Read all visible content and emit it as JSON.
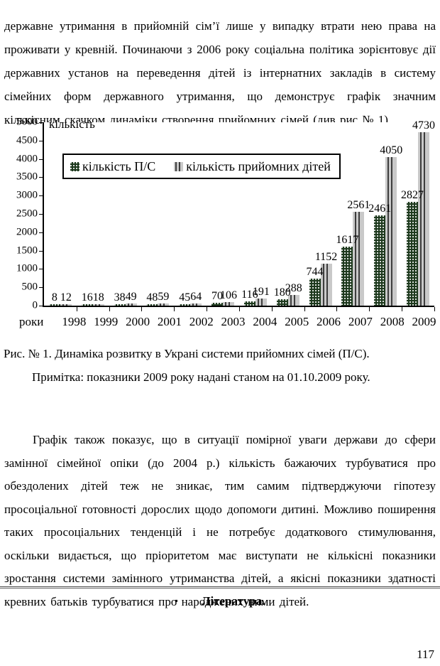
{
  "document": {
    "paragraph1": "державне утримання в прийомній сім’ї лише у випадку втрати нею права на проживати у кревній. Починаючи з 2006 року соціальна політика зорієнтовує дії державних установ на переведення дітей із інтернатних закладів в систему сімейних форм державного утримання, що демонструє графік значним кількісним скачком динаміки створення прийомних сімей (див рис № 1).",
    "figure_caption": "Рис. № 1. Динаміка розвитку в Украні системи прийомних сімей (П/С).",
    "figure_note": "Примітка: показники 2009 року надані станом на 01.10.2009 року.",
    "paragraph2": "Графік також показує, що в ситуації помірної уваги держави до сфери замінної сімейної опіки (до 2004 р.) кількість бажаючих турбуватися про обездолених дітей теж не зникає, тим самим підтверджуючи гіпотезу просоціальної готовності дорослих щодо допомоги дитині. Можливо поширення таких просоціальних тенденцій і не потребує додаткового стимулювання, оскільки видається, що пріоритетом має виступати не кількісні показники зростання системи замінного утриманства дітей, а якісні показники здатності кревних батьків турбуватися про народжених ними дітей.",
    "literature_bullet": "▪",
    "literature_heading": "Література.",
    "page_number": "117"
  },
  "chart_data": {
    "type": "bar",
    "title": "",
    "ylabel": "кількість",
    "xlabel": "роки",
    "categories": [
      "1998",
      "1999",
      "2000",
      "2001",
      "2002",
      "2003",
      "2004",
      "2005",
      "2006",
      "2007",
      "2008",
      "2009"
    ],
    "series": [
      {
        "name": "кількість П/С",
        "color": "#1d391d",
        "pattern": "white-dots-on-dark-green",
        "values": [
          8,
          16,
          38,
          48,
          45,
          70,
          116,
          180,
          744,
          1617,
          2461,
          2827
        ]
      },
      {
        "name": "кількість прийомних дітей",
        "color": "#c9c9c9",
        "pattern": "dark-vertical-stripes-on-gray",
        "values": [
          12,
          18,
          49,
          59,
          64,
          106,
          191,
          288,
          1152,
          2561,
          4050,
          4730
        ]
      }
    ],
    "ylim": [
      0,
      5000
    ],
    "ytick_step": 500,
    "grid": false,
    "legend_position": "inside-top-left",
    "bar_value_labels": true
  }
}
